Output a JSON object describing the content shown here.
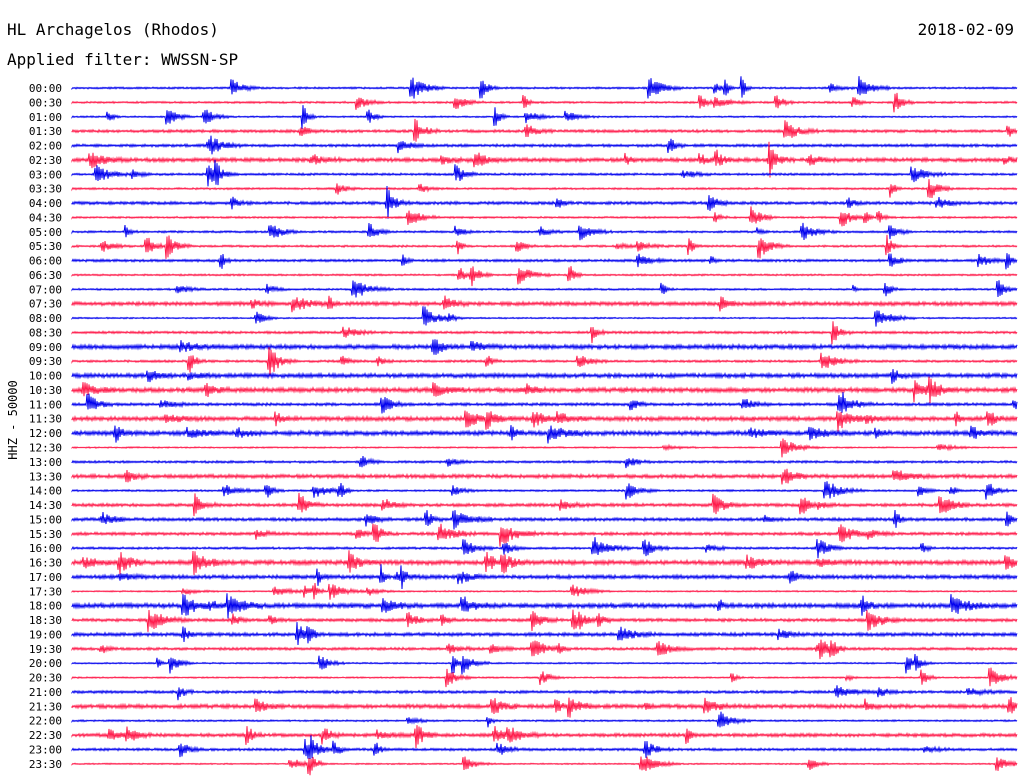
{
  "header": {
    "station": "HL Archagelos (Rhodos)",
    "date": "2018-02-09",
    "filter": "Applied filter: WWSSN-SP"
  },
  "channel_label": "HHZ - 50000",
  "colors": {
    "even_row": "#0000ee",
    "odd_row": "#ff1a4a"
  },
  "rows": [
    "00:00",
    "00:30",
    "01:00",
    "01:30",
    "02:00",
    "02:30",
    "03:00",
    "03:30",
    "04:00",
    "04:30",
    "05:00",
    "05:30",
    "06:00",
    "06:30",
    "07:00",
    "07:30",
    "08:00",
    "08:30",
    "09:00",
    "09:30",
    "10:00",
    "10:30",
    "11:00",
    "11:30",
    "12:00",
    "12:30",
    "13:00",
    "13:30",
    "14:00",
    "14:30",
    "15:00",
    "15:30",
    "16:00",
    "16:30",
    "17:00",
    "17:30",
    "18:00",
    "18:30",
    "19:00",
    "19:30",
    "20:00",
    "20:30",
    "21:00",
    "21:30",
    "22:00",
    "22:30",
    "23:00",
    "23:30"
  ]
}
